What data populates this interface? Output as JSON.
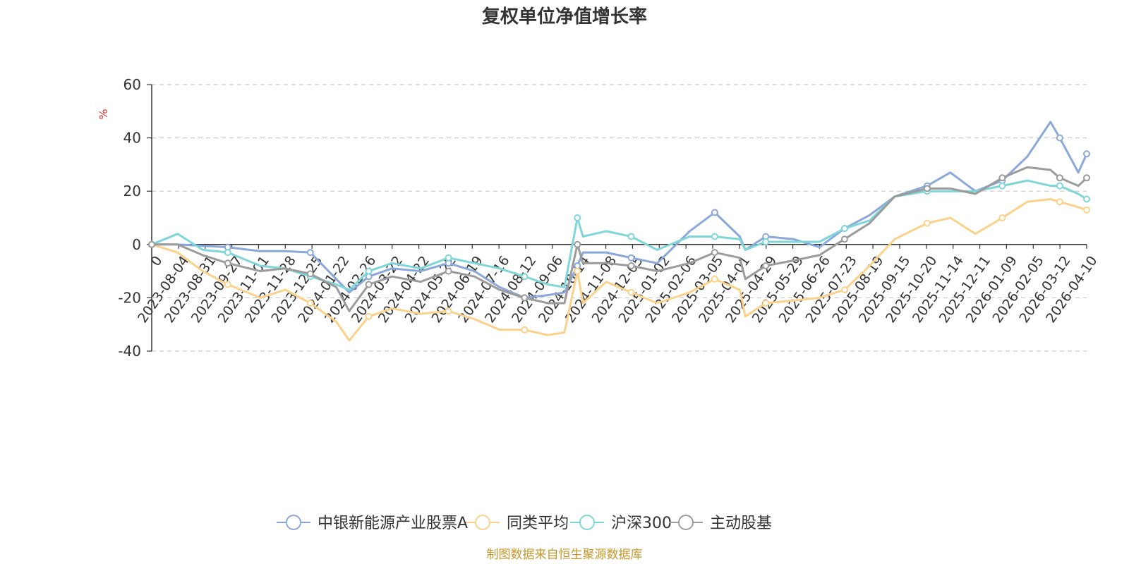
{
  "chart_data": {
    "type": "line",
    "title": "复权单位净值增长率",
    "ylabel": "%",
    "ylim": [
      -40,
      60
    ],
    "yticks": [
      60,
      40,
      20,
      0,
      -20,
      -40
    ],
    "grid": true,
    "legend_position": "bottom",
    "x_start_label": "0",
    "x_ticks": [
      "2023-08-04",
      "2023-08-31",
      "2023-09-27",
      "2023-11-01",
      "2023-11-28",
      "2023-12-25",
      "2024-01-22",
      "2024-02-26",
      "2024-03-22",
      "2024-04-22",
      "2024-05-22",
      "2024-06-19",
      "2024-07-16",
      "2024-08-12",
      "2024-09-06",
      "2024-10-14",
      "2024-11-08",
      "2024-12-05",
      "2025-01-02",
      "2025-02-06",
      "2025-03-05",
      "2025-04-01",
      "2025-04-29",
      "2025-05-29",
      "2025-06-26",
      "2025-07-23",
      "2025-08-19",
      "2025-09-15",
      "2025-10-20",
      "2025-11-14",
      "2025-12-11",
      "2026-01-09",
      "2026-02-05",
      "2026-03-12",
      "2026-04-10"
    ],
    "x": [
      "2023-07-07",
      "2023-08-04",
      "2023-08-31",
      "2023-09-27",
      "2023-11-01",
      "2023-11-28",
      "2023-12-25",
      "2024-01-22",
      "2024-02-05",
      "2024-02-26",
      "2024-03-22",
      "2024-04-22",
      "2024-05-22",
      "2024-06-19",
      "2024-07-16",
      "2024-08-12",
      "2024-09-06",
      "2024-09-24",
      "2024-10-08",
      "2024-10-14",
      "2024-11-08",
      "2024-12-05",
      "2025-01-02",
      "2025-02-06",
      "2025-03-05",
      "2025-04-01",
      "2025-04-07",
      "2025-04-29",
      "2025-05-29",
      "2025-06-26",
      "2025-07-23",
      "2025-08-19",
      "2025-09-15",
      "2025-10-20",
      "2025-11-14",
      "2025-12-11",
      "2026-01-09",
      "2026-02-05",
      "2026-03-02",
      "2026-03-12",
      "2026-04-01",
      "2026-04-10"
    ],
    "series": [
      {
        "name": "中银新能源产业股票A",
        "color": "#8aa8d9",
        "values": [
          0,
          0,
          -0.5,
          -1,
          -2.5,
          -2.5,
          -3,
          -13,
          -18,
          -12,
          -9,
          -10,
          -7,
          -10,
          -16,
          -20,
          -19,
          -18,
          -8,
          -3,
          -3,
          -5,
          -7,
          5,
          12,
          3,
          -2,
          3,
          2,
          -1,
          6,
          11,
          18,
          22,
          27,
          20,
          24,
          33,
          46,
          40,
          27,
          34
        ]
      },
      {
        "name": "同类平均",
        "color": "#fbd28c",
        "values": [
          0,
          -3,
          -10,
          -15,
          -20,
          -17,
          -22,
          -29,
          -36,
          -27,
          -24,
          -26,
          -25,
          -28,
          -32,
          -32,
          -34,
          -33,
          -10,
          -22,
          -14,
          -18,
          -22,
          -18,
          -13,
          -17,
          -27,
          -22,
          -21,
          -20,
          -17,
          -8,
          2,
          8,
          10,
          4,
          10,
          16,
          17,
          16,
          14,
          13
        ]
      },
      {
        "name": "沪深300",
        "color": "#7fd6d8",
        "values": [
          0,
          4,
          -2,
          -3,
          -8,
          -9,
          -12,
          -15,
          -17,
          -10,
          -7,
          -9,
          -5,
          -7,
          -9,
          -12,
          -15,
          -16,
          10,
          3,
          5,
          3,
          -2,
          3,
          3,
          2,
          -2,
          1,
          1,
          1,
          6,
          9,
          18,
          20,
          20,
          20,
          22,
          24,
          22,
          22,
          19,
          17
        ]
      },
      {
        "name": "主动股基",
        "color": "#9b9b9b",
        "values": [
          0,
          0,
          -4,
          -7,
          -10,
          -9,
          -11,
          -16,
          -25,
          -15,
          -12,
          -14,
          -10,
          -12,
          -17,
          -20,
          -22,
          -22,
          0,
          -7,
          -7,
          -8,
          -10,
          -7,
          -3,
          -5,
          -13,
          -8,
          -6,
          -4,
          2,
          8,
          18,
          21,
          21,
          19,
          25,
          29,
          28,
          25,
          22,
          25
        ]
      }
    ]
  },
  "legend": [
    {
      "label": "中银新能源产业股票A",
      "color": "#8aa8d9"
    },
    {
      "label": "同类平均",
      "color": "#fbd28c"
    },
    {
      "label": "沪深300",
      "color": "#7fd6d8"
    },
    {
      "label": "主动股基",
      "color": "#9b9b9b"
    }
  ],
  "source_note": "制图数据来自恒生聚源数据库"
}
